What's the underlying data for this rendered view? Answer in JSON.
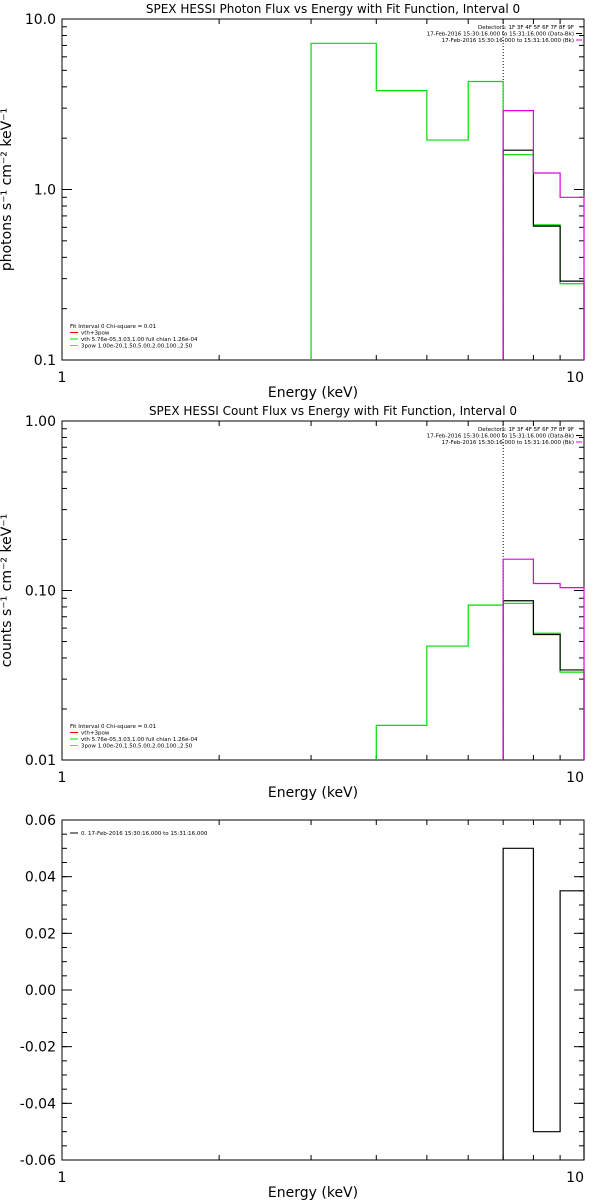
{
  "colors": {
    "black": "#000000",
    "magenta": "#dd00dd",
    "green": "#00dd00",
    "red": "#dd0000",
    "orange": "#ddaa00"
  },
  "chart_data": [
    {
      "type": "line",
      "title": "SPEX HESSI Photon Flux vs Energy with Fit Function, Interval 0",
      "xlabel": "Energy (keV)",
      "ylabel": "photons s⁻¹ cm⁻² keV⁻¹",
      "xscale": "log",
      "yscale": "log",
      "xlim": [
        1,
        10
      ],
      "ylim": [
        0.1,
        10
      ],
      "xticks": [
        {
          "v": 1,
          "t": "1"
        },
        {
          "v": 10,
          "t": "10"
        }
      ],
      "yticks": [
        {
          "v": 0.1,
          "t": "0.1"
        },
        {
          "v": 1,
          "t": "1.0"
        },
        {
          "v": 10,
          "t": "10.0"
        }
      ],
      "vline": 7,
      "header": [
        "Detectors: 1F 3F 4F 5F 6F 7F 8F 9F",
        "17-Feb-2016 15:30:16.000 to 15:31:16.000 (Data-Bk)",
        "17-Feb-2016 15:30:16.000 to 15:31:16.000 (Bk)"
      ],
      "header_colors": [
        "#000000",
        "#000000",
        "#dd00dd"
      ],
      "legend": [
        "Fit Interval 0   Chi-square = 0.01",
        "vth+3pow",
        "vth 5.76e-05,3.03,1.00   full chian 1.26e-04",
        "3pow 1.00e-20,1.50,5.00,2.00,100.,2.50"
      ],
      "legend_colors": [
        "#000000",
        "#dd0000",
        "#00dd00",
        "#ddaa00"
      ],
      "series": [
        {
          "color": "#00dd00",
          "edges": [
            3,
            4,
            5,
            6,
            7,
            8,
            9,
            10
          ],
          "values": [
            7.2,
            3.8,
            1.95,
            4.3,
            1.6,
            0.62,
            0.28
          ]
        },
        {
          "color": "#000000",
          "edges": [
            7,
            8,
            9,
            10
          ],
          "values": [
            1.7,
            0.61,
            0.29
          ]
        },
        {
          "color": "#dd00dd",
          "edges": [
            7,
            8,
            9,
            10
          ],
          "values": [
            2.9,
            1.25,
            0.9
          ]
        }
      ]
    },
    {
      "type": "line",
      "title": "SPEX HESSI Count Flux vs Energy with Fit Function, Interval 0",
      "xlabel": "Energy (keV)",
      "ylabel": "counts s⁻¹ cm⁻² keV⁻¹",
      "xscale": "log",
      "yscale": "log",
      "xlim": [
        1,
        10
      ],
      "ylim": [
        0.01,
        1
      ],
      "xticks": [
        {
          "v": 1,
          "t": "1"
        },
        {
          "v": 10,
          "t": "10"
        }
      ],
      "yticks": [
        {
          "v": 0.01,
          "t": "0.01"
        },
        {
          "v": 0.1,
          "t": "0.10"
        },
        {
          "v": 1,
          "t": "1.00"
        }
      ],
      "vline": 7,
      "header": [
        "Detectors: 1F 3F 4F 5F 6F 7F 8F 9F",
        "17-Feb-2016 15:30:16.000 to 15:31:16.000 (Data-Bk)",
        "17-Feb-2016 15:30:16.000 to 15:31:16.000 (Bk)"
      ],
      "header_colors": [
        "#000000",
        "#000000",
        "#dd00dd"
      ],
      "legend": [
        "Fit Interval 0   Chi-square = 0.01",
        "vth+3pow",
        "vth 5.76e-05,3.03,1.00   full chian 1.26e-04",
        "3pow 1.00e-20,1.50,5.00,2.00,100.,2.50"
      ],
      "legend_colors": [
        "#000000",
        "#dd0000",
        "#00dd00",
        "#ddaa00"
      ],
      "series": [
        {
          "color": "#00dd00",
          "edges": [
            4,
            5,
            6,
            7,
            8,
            9,
            10
          ],
          "values": [
            0.016,
            0.047,
            0.082,
            0.084,
            0.056,
            0.033
          ]
        },
        {
          "color": "#000000",
          "edges": [
            7,
            8,
            9,
            10
          ],
          "values": [
            0.087,
            0.055,
            0.034
          ]
        },
        {
          "color": "#dd00dd",
          "edges": [
            7,
            8,
            9,
            10
          ],
          "values": [
            0.153,
            0.11,
            0.104
          ]
        }
      ]
    },
    {
      "type": "line",
      "title": "",
      "xlabel": "Energy (keV)",
      "ylabel": "",
      "xscale": "log",
      "yscale": "linear",
      "xlim": [
        1,
        10
      ],
      "ylim": [
        -0.06,
        0.06
      ],
      "xticks": [
        {
          "v": 1,
          "t": "1"
        },
        {
          "v": 10,
          "t": "10"
        }
      ],
      "yticks": [
        {
          "v": 0.06,
          "t": "0.06"
        },
        {
          "v": 0.04,
          "t": "0.04"
        },
        {
          "v": 0.02,
          "t": "0.02"
        },
        {
          "v": 0,
          "t": "0.00"
        },
        {
          "v": -0.02,
          "t": "-0.02"
        },
        {
          "v": -0.04,
          "t": "-0.04"
        },
        {
          "v": -0.06,
          "t": "-0.06"
        }
      ],
      "legend": [
        "0. 17-Feb-2016 15:30:16.000 to 15:31:16.000"
      ],
      "legend_colors": [
        "#000000"
      ],
      "series": [
        {
          "color": "#000000",
          "edges": [
            7,
            8,
            9,
            10
          ],
          "values": [
            0.05,
            -0.05,
            0.035
          ],
          "from_bottom": true
        }
      ]
    }
  ]
}
